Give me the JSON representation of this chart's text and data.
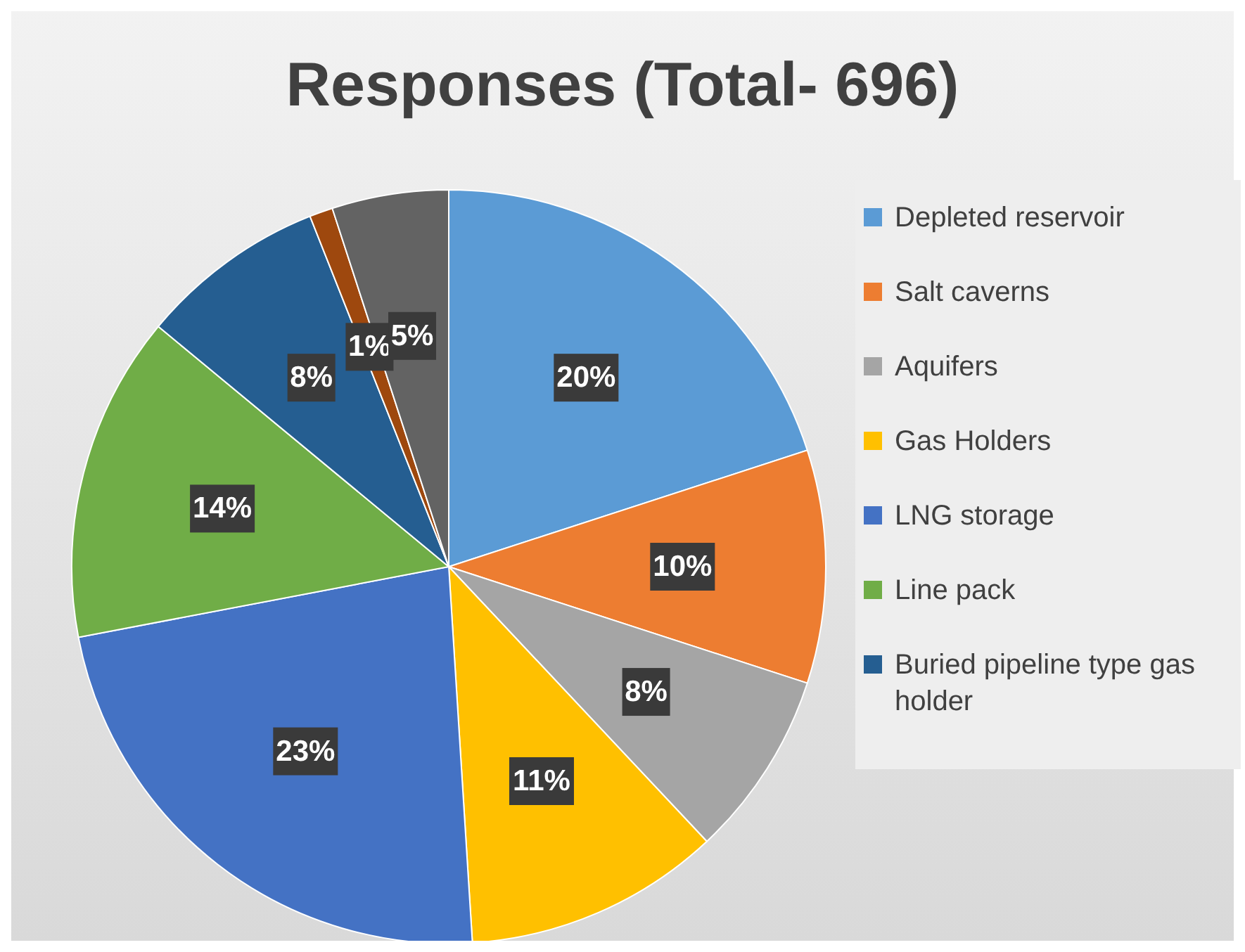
{
  "chart_data": {
    "type": "pie",
    "title": "Responses (Total- 696)",
    "categories": [
      "Depleted reservoir",
      "Salt caverns",
      "Aquifers",
      "Gas Holders",
      "LNG storage",
      "Line pack",
      "Buried pipeline type gas holder",
      null,
      null
    ],
    "values": [
      20,
      10,
      8,
      11,
      23,
      14,
      8,
      1,
      5
    ],
    "colors": [
      "#5b9bd5",
      "#ed7d31",
      "#a5a5a5",
      "#ffc000",
      "#4472c4",
      "#70ad47",
      "#255e91",
      "#9e480e",
      "#636363"
    ],
    "value_labels": [
      "20%",
      "10%",
      "8%",
      "11%",
      "23%",
      "14%",
      "8%",
      "1%",
      "5%"
    ],
    "legend": "right"
  }
}
